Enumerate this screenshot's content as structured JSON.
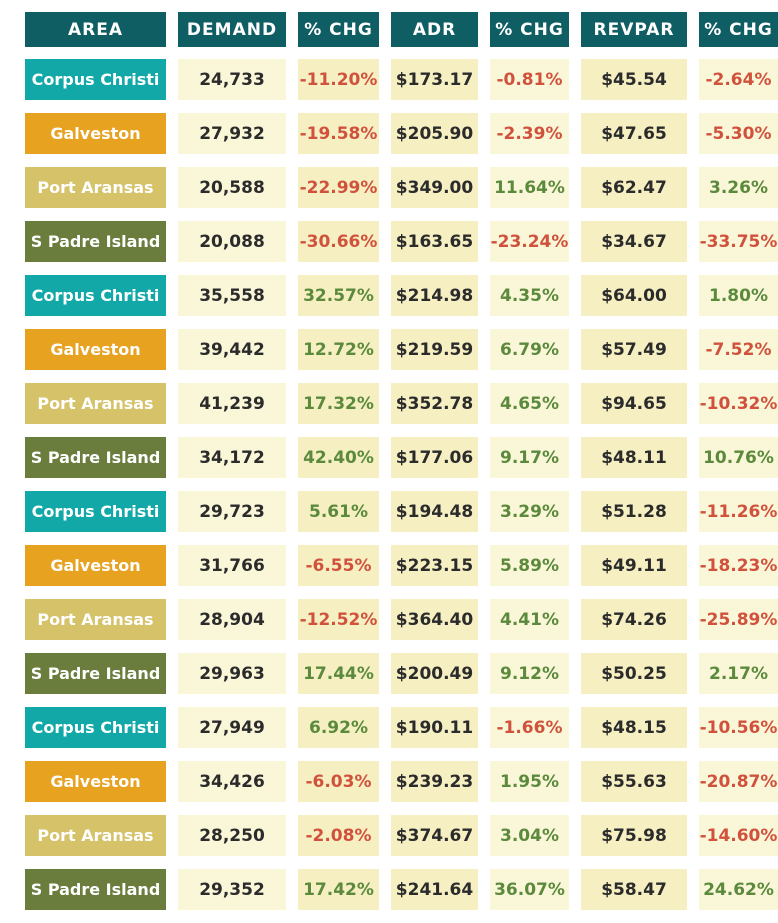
{
  "header": {
    "area": "AREA",
    "demand": "DEMAND",
    "demand_chg": "% CHG",
    "adr": "ADR",
    "adr_chg": "% CHG",
    "revpar": "REVPAR",
    "revpar_chg": "% CHG"
  },
  "colors": {
    "header_bg": "#0f5e64",
    "corpus_christi": "#12a8a8",
    "galveston": "#e7a21f",
    "port_aransas": "#d6c268",
    "s_padre_island": "#6a7d3d",
    "negative": "#d0523c",
    "positive": "#5b8a3c"
  },
  "rows": [
    {
      "area": "Corpus Christi",
      "demand": "24,733",
      "demand_chg": "-11.20%",
      "adr": "$173.17",
      "adr_chg": "-0.81%",
      "revpar": "$45.54",
      "revpar_chg": "-2.64%"
    },
    {
      "area": "Galveston",
      "demand": "27,932",
      "demand_chg": "-19.58%",
      "adr": "$205.90",
      "adr_chg": "-2.39%",
      "revpar": "$47.65",
      "revpar_chg": "-5.30%"
    },
    {
      "area": "Port Aransas",
      "demand": "20,588",
      "demand_chg": "-22.99%",
      "adr": "$349.00",
      "adr_chg": "11.64%",
      "revpar": "$62.47",
      "revpar_chg": "3.26%"
    },
    {
      "area": "S Padre Island",
      "demand": "20,088",
      "demand_chg": "-30.66%",
      "adr": "$163.65",
      "adr_chg": "-23.24%",
      "revpar": "$34.67",
      "revpar_chg": "-33.75%"
    },
    {
      "area": "Corpus Christi",
      "demand": "35,558",
      "demand_chg": "32.57%",
      "adr": "$214.98",
      "adr_chg": "4.35%",
      "revpar": "$64.00",
      "revpar_chg": "1.80%"
    },
    {
      "area": "Galveston",
      "demand": "39,442",
      "demand_chg": "12.72%",
      "adr": "$219.59",
      "adr_chg": "6.79%",
      "revpar": "$57.49",
      "revpar_chg": "-7.52%"
    },
    {
      "area": "Port Aransas",
      "demand": "41,239",
      "demand_chg": "17.32%",
      "adr": "$352.78",
      "adr_chg": "4.65%",
      "revpar": "$94.65",
      "revpar_chg": "-10.32%"
    },
    {
      "area": "S Padre Island",
      "demand": "34,172",
      "demand_chg": "42.40%",
      "adr": "$177.06",
      "adr_chg": "9.17%",
      "revpar": "$48.11",
      "revpar_chg": "10.76%"
    },
    {
      "area": "Corpus Christi",
      "demand": "29,723",
      "demand_chg": "5.61%",
      "adr": "$194.48",
      "adr_chg": "3.29%",
      "revpar": "$51.28",
      "revpar_chg": "-11.26%"
    },
    {
      "area": "Galveston",
      "demand": "31,766",
      "demand_chg": "-6.55%",
      "adr": "$223.15",
      "adr_chg": "5.89%",
      "revpar": "$49.11",
      "revpar_chg": "-18.23%"
    },
    {
      "area": "Port Aransas",
      "demand": "28,904",
      "demand_chg": "-12.52%",
      "adr": "$364.40",
      "adr_chg": "4.41%",
      "revpar": "$74.26",
      "revpar_chg": "-25.89%"
    },
    {
      "area": "S Padre Island",
      "demand": "29,963",
      "demand_chg": "17.44%",
      "adr": "$200.49",
      "adr_chg": "9.12%",
      "revpar": "$50.25",
      "revpar_chg": "2.17%"
    },
    {
      "area": "Corpus Christi",
      "demand": "27,949",
      "demand_chg": "6.92%",
      "adr": "$190.11",
      "adr_chg": "-1.66%",
      "revpar": "$48.15",
      "revpar_chg": "-10.56%"
    },
    {
      "area": "Galveston",
      "demand": "34,426",
      "demand_chg": "-6.03%",
      "adr": "$239.23",
      "adr_chg": "1.95%",
      "revpar": "$55.63",
      "revpar_chg": "-20.87%"
    },
    {
      "area": "Port Aransas",
      "demand": "28,250",
      "demand_chg": "-2.08%",
      "adr": "$374.67",
      "adr_chg": "3.04%",
      "revpar": "$75.98",
      "revpar_chg": "-14.60%"
    },
    {
      "area": "S Padre Island",
      "demand": "29,352",
      "demand_chg": "17.42%",
      "adr": "$241.64",
      "adr_chg": "36.07%",
      "revpar": "$58.47",
      "revpar_chg": "24.62%"
    }
  ]
}
